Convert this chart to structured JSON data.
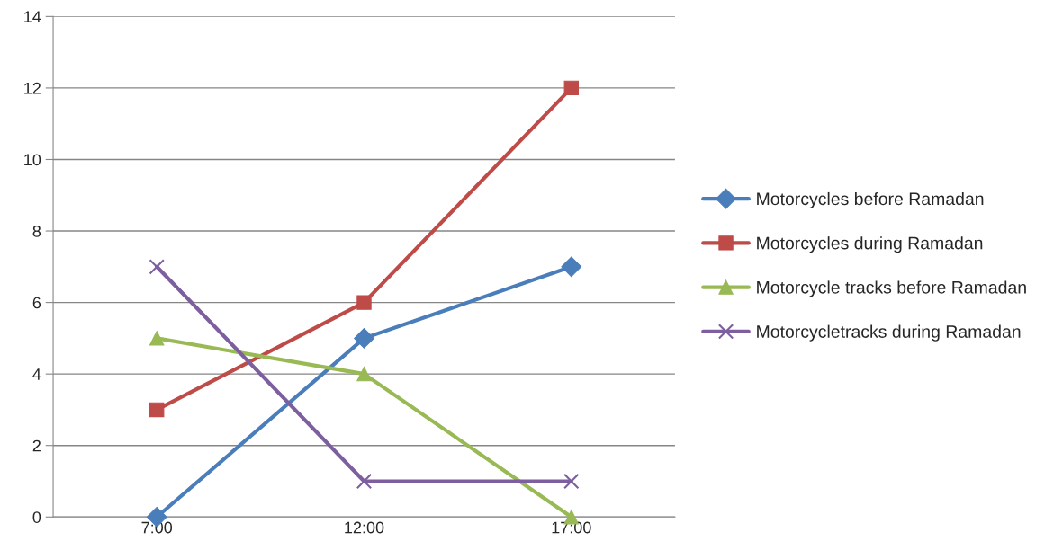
{
  "chart_data": {
    "type": "line",
    "categories": [
      "7:00",
      "12:00",
      "17:00"
    ],
    "series": [
      {
        "name": "Motorcycles before Ramadan",
        "color": "#4a7ebb",
        "marker": "diamond",
        "values": [
          0,
          5,
          7
        ]
      },
      {
        "name": "Motorcycles during Ramadan",
        "color": "#be4b48",
        "marker": "square",
        "values": [
          3,
          6,
          12
        ]
      },
      {
        "name": "Motorcycle tracks before Ramadan",
        "color": "#98b954",
        "marker": "triangle",
        "values": [
          5,
          4,
          0
        ]
      },
      {
        "name": "Motorcycletracks during Ramadan",
        "color": "#7d5fa0",
        "marker": "cross",
        "values": [
          7,
          1,
          1
        ]
      }
    ],
    "ylim": [
      0,
      14
    ],
    "yticks": [
      0,
      2,
      4,
      6,
      8,
      10,
      12,
      14
    ],
    "grid": "y",
    "legend": "right"
  }
}
